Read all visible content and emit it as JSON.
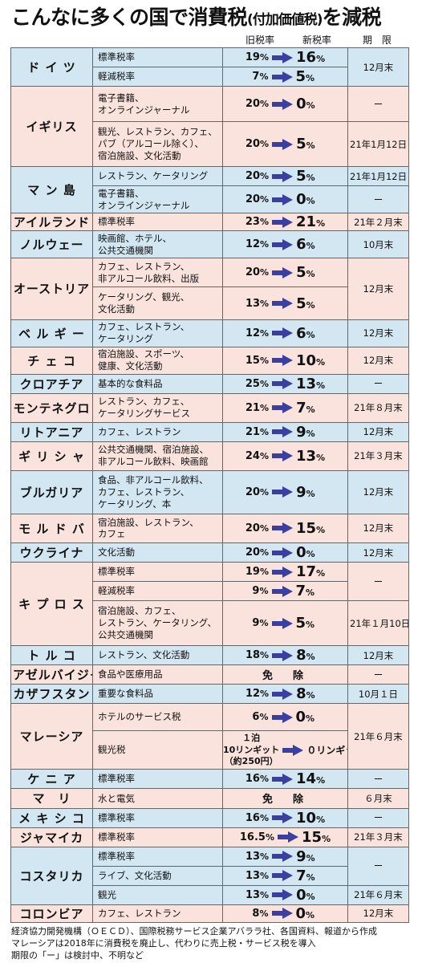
{
  "title": {
    "main": "こんなに多くの国で消費税",
    "sub": "(付加価値税)",
    "end": "を減税"
  },
  "headers": {
    "old_rate": "旧税率",
    "new_rate": "新税率",
    "deadline": "期　限"
  },
  "countries": [
    {
      "name": "ド イ ツ",
      "color": "b",
      "deadline_groups": [
        [
          "12月末",
          2
        ]
      ],
      "rows": [
        {
          "cat": "標準税率",
          "old": "19",
          "new": "16"
        },
        {
          "cat": "軽減税率",
          "old": "7",
          "new": "5"
        }
      ]
    },
    {
      "name": "イギリス",
      "color": "p",
      "deadline_groups": [
        [
          "ー",
          1
        ],
        [
          "21年1月12日",
          1
        ]
      ],
      "rows": [
        {
          "cat": "電子書籍、\nオンラインジャーナル",
          "old": "20",
          "new": "0"
        },
        {
          "cat": "観光、レストラン、カフェ、\nパブ（アルコール除く）、\n宿泊施設、文化活動",
          "old": "20",
          "new": "5"
        }
      ]
    },
    {
      "name": "マ ン 島",
      "color": "b",
      "deadline_groups": [
        [
          "21年1月12日",
          1
        ],
        [
          "ー",
          1
        ]
      ],
      "rows": [
        {
          "cat": "レストラン、ケータリング",
          "old": "20",
          "new": "5"
        },
        {
          "cat": "電子書籍、\nオンラインジャーナル",
          "old": "20",
          "new": "0"
        }
      ]
    },
    {
      "name": "アイルランド",
      "color": "p",
      "deadline_groups": [
        [
          "21年２月末",
          1
        ]
      ],
      "rows": [
        {
          "cat": "標準税率",
          "old": "23",
          "new": "21"
        }
      ]
    },
    {
      "name": "ノルウェー",
      "color": "b",
      "deadline_groups": [
        [
          "10月末",
          1
        ]
      ],
      "rows": [
        {
          "cat": "映画館、ホテル、\n公共交通機関",
          "old": "12",
          "new": "6"
        }
      ]
    },
    {
      "name": "オーストリア",
      "color": "p",
      "deadline_groups": [
        [
          "12月末",
          2
        ]
      ],
      "rows": [
        {
          "cat": "カフェ、レストラン、\n非アルコール飲料、出版",
          "old": "20",
          "new": "5"
        },
        {
          "cat": "ケータリング、観光、\n文化活動",
          "old": "13",
          "new": "5"
        }
      ]
    },
    {
      "name": "ベ ル ギ ー",
      "color": "b",
      "deadline_groups": [
        [
          "12月末",
          1
        ]
      ],
      "rows": [
        {
          "cat": "カフェ、レストラン、\nケータリング",
          "old": "12",
          "new": "6"
        }
      ]
    },
    {
      "name": "チ ェ コ",
      "color": "p",
      "deadline_groups": [
        [
          "12月末",
          1
        ]
      ],
      "rows": [
        {
          "cat": "宿泊施設、スポーツ、\n健康、文化活動",
          "old": "15",
          "new": "10"
        }
      ]
    },
    {
      "name": "クロアチア",
      "color": "b",
      "deadline_groups": [
        [
          "ー",
          1
        ]
      ],
      "rows": [
        {
          "cat": "基本的な食料品",
          "old": "25",
          "new": "13"
        }
      ]
    },
    {
      "name": "モンテネグロ",
      "color": "p",
      "deadline_groups": [
        [
          "21年８月末",
          1
        ]
      ],
      "rows": [
        {
          "cat": "レストラン、カフェ、\nケータリングサービス",
          "old": "21",
          "new": "7"
        }
      ]
    },
    {
      "name": "リトアニア",
      "color": "b",
      "deadline_groups": [
        [
          "12月末",
          1
        ]
      ],
      "rows": [
        {
          "cat": "カフェ、レストラン",
          "old": "21",
          "new": "9"
        }
      ]
    },
    {
      "name": "ギ リ シ ャ",
      "color": "p",
      "deadline_groups": [
        [
          "21年３月末",
          1
        ]
      ],
      "rows": [
        {
          "cat": "公共交通機関、宿泊施設、\n非アルコール飲料、映画館",
          "old": "24",
          "new": "13"
        }
      ]
    },
    {
      "name": "ブルガリア",
      "color": "b",
      "deadline_groups": [
        [
          "12月末",
          1
        ]
      ],
      "rows": [
        {
          "cat": "食品、非アルコール飲料、\nカフェ、レストラン、\nケータリング、本",
          "old": "20",
          "new": "9"
        }
      ]
    },
    {
      "name": "モ ル ド バ",
      "color": "p",
      "deadline_groups": [
        [
          "12月末",
          1
        ]
      ],
      "rows": [
        {
          "cat": "宿泊施設、レストラン、\nカフェ",
          "old": "20",
          "new": "15"
        }
      ]
    },
    {
      "name": "ウクライナ",
      "color": "b",
      "deadline_groups": [
        [
          "12月末",
          1
        ]
      ],
      "rows": [
        {
          "cat": "文化活動",
          "old": "20",
          "new": "0"
        }
      ]
    },
    {
      "name": "キ プ ロ ス",
      "color": "p",
      "deadline_groups": [
        [
          "ー",
          2
        ],
        [
          "21年１月10日",
          1
        ]
      ],
      "rows": [
        {
          "cat": "標準税率",
          "old": "19",
          "new": "17"
        },
        {
          "cat": "軽減税率",
          "old": "9",
          "new": "7"
        },
        {
          "cat": "宿泊施設、カフェ、\nレストラン、ケータリング、\n公共交通機関",
          "old": "9",
          "new": "5"
        }
      ]
    },
    {
      "name": "ト ル コ",
      "color": "b",
      "deadline_groups": [
        [
          "12月末",
          1
        ]
      ],
      "rows": [
        {
          "cat": "レストラン、文化活動",
          "old": "18",
          "new": "8"
        }
      ]
    },
    {
      "name": "アゼルバイジャン",
      "color": "p",
      "deadline_groups": [
        [
          "ー",
          1
        ]
      ],
      "rows": [
        {
          "cat": "食品や医療用品",
          "exempt": "免　除"
        }
      ]
    },
    {
      "name": "カザフスタン",
      "color": "b",
      "deadline_groups": [
        [
          "10月１日",
          1
        ]
      ],
      "rows": [
        {
          "cat": "重要な食料品",
          "old": "12",
          "new": "8"
        }
      ]
    },
    {
      "name": "マレーシア",
      "color": "p",
      "deadline_groups": [
        [
          "21年６月末",
          2
        ]
      ],
      "rows": [
        {
          "cat": "ホテルのサービス税",
          "old": "6",
          "new": "0"
        },
        {
          "cat": "観光税",
          "special_old": "１泊\n10リンギット\n（約250円）",
          "special_new": "０リンギット"
        }
      ]
    },
    {
      "name": "ケ ニ ア",
      "color": "b",
      "deadline_groups": [
        [
          "ー",
          1
        ]
      ],
      "rows": [
        {
          "cat": "標準税率",
          "old": "16",
          "new": "14"
        }
      ]
    },
    {
      "name": "マ　リ",
      "color": "p",
      "deadline_groups": [
        [
          "６月末",
          1
        ]
      ],
      "rows": [
        {
          "cat": "水と電気",
          "exempt": "免　除"
        }
      ]
    },
    {
      "name": "メ キ シ コ",
      "color": "b",
      "deadline_groups": [
        [
          "ー",
          1
        ]
      ],
      "rows": [
        {
          "cat": "標準税率",
          "old": "16",
          "new": "10"
        }
      ]
    },
    {
      "name": "ジャマイカ",
      "color": "p",
      "deadline_groups": [
        [
          "21年３月末",
          1
        ]
      ],
      "rows": [
        {
          "cat": "標準税率",
          "old": "16.5",
          "new": "15"
        }
      ]
    },
    {
      "name": "コスタリカ",
      "color": "b",
      "deadline_groups": [
        [
          "ー",
          2
        ],
        [
          "21年６月末",
          1
        ]
      ],
      "rows": [
        {
          "cat": "標準税率",
          "old": "13",
          "new": "9"
        },
        {
          "cat": "ライブ、文化活動",
          "old": "13",
          "new": "7"
        },
        {
          "cat": "観光",
          "old": "13",
          "new": "0"
        }
      ]
    },
    {
      "name": "コロンビア",
      "color": "p",
      "deadline_groups": [
        [
          "12月末",
          1
        ]
      ],
      "rows": [
        {
          "cat": "カフェ、レストラン",
          "old": "8",
          "new": "0"
        }
      ]
    }
  ],
  "pct": "%",
  "footer": [
    "経済協力開発機構（ＯＥＣＤ）、国際税務サービス企業アバララ社、各国資料、報道から作成",
    "マレーシアは2018年に消費税を廃止し、代わりに売上税・サービス税を導入",
    "期限の「ー」は検討中、不明など"
  ]
}
